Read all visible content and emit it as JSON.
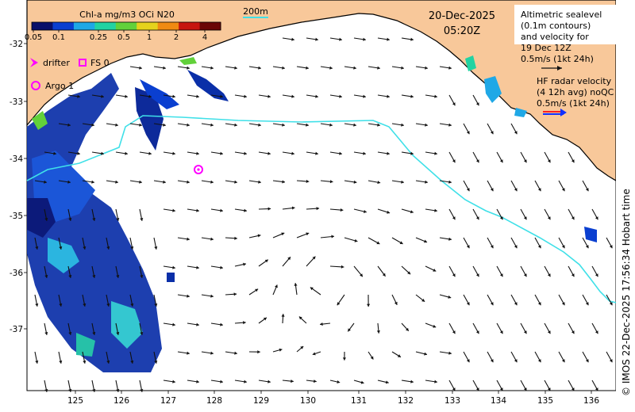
{
  "colorbar": {
    "title": "Chl-a mg/m3 OCi N20",
    "ticks": [
      "0.05",
      "0.1",
      "0.25",
      "0.5",
      "1",
      "2",
      "4"
    ],
    "colors": [
      "#08106a",
      "#0a3fd0",
      "#1fa8e6",
      "#22d3a2",
      "#62d13a",
      "#e5d21c",
      "#f08a12",
      "#c7150f",
      "#6b0606"
    ]
  },
  "isobath_label": "200m",
  "date": "20-Dec-2025",
  "time": "05:20Z",
  "legend": {
    "drifter": "drifter",
    "fs": "FS 0",
    "argo": "Argo 1"
  },
  "altimetry_note": [
    "Altimetric sealevel",
    "(0.1m contours)",
    "and velocity for",
    "19 Dec 12Z",
    "0.5m/s (1kt 24h)"
  ],
  "hf_note": [
    "HF radar velocity",
    "(4 12h avg) noQC",
    "0.5m/s (1kt 24h)"
  ],
  "side_credit": "© IMOS 22-Dec-2025 17:56:34 Hobart time",
  "y_ticks": [
    "-32",
    "-33",
    "-34",
    "-35",
    "-36",
    "-37"
  ],
  "x_ticks": [
    "125",
    "126",
    "127",
    "128",
    "129",
    "130",
    "131",
    "132",
    "133",
    "134",
    "135",
    "136"
  ],
  "argo_position": {
    "lon": 127.65,
    "lat": -34.2
  },
  "colors": {
    "land": "#f8c89a",
    "isobath": "#3fe0e8",
    "drifter": "#ff00ff",
    "arrow": "#111111",
    "hf_red": "#ff2020",
    "hf_blue": "#1030ff"
  }
}
